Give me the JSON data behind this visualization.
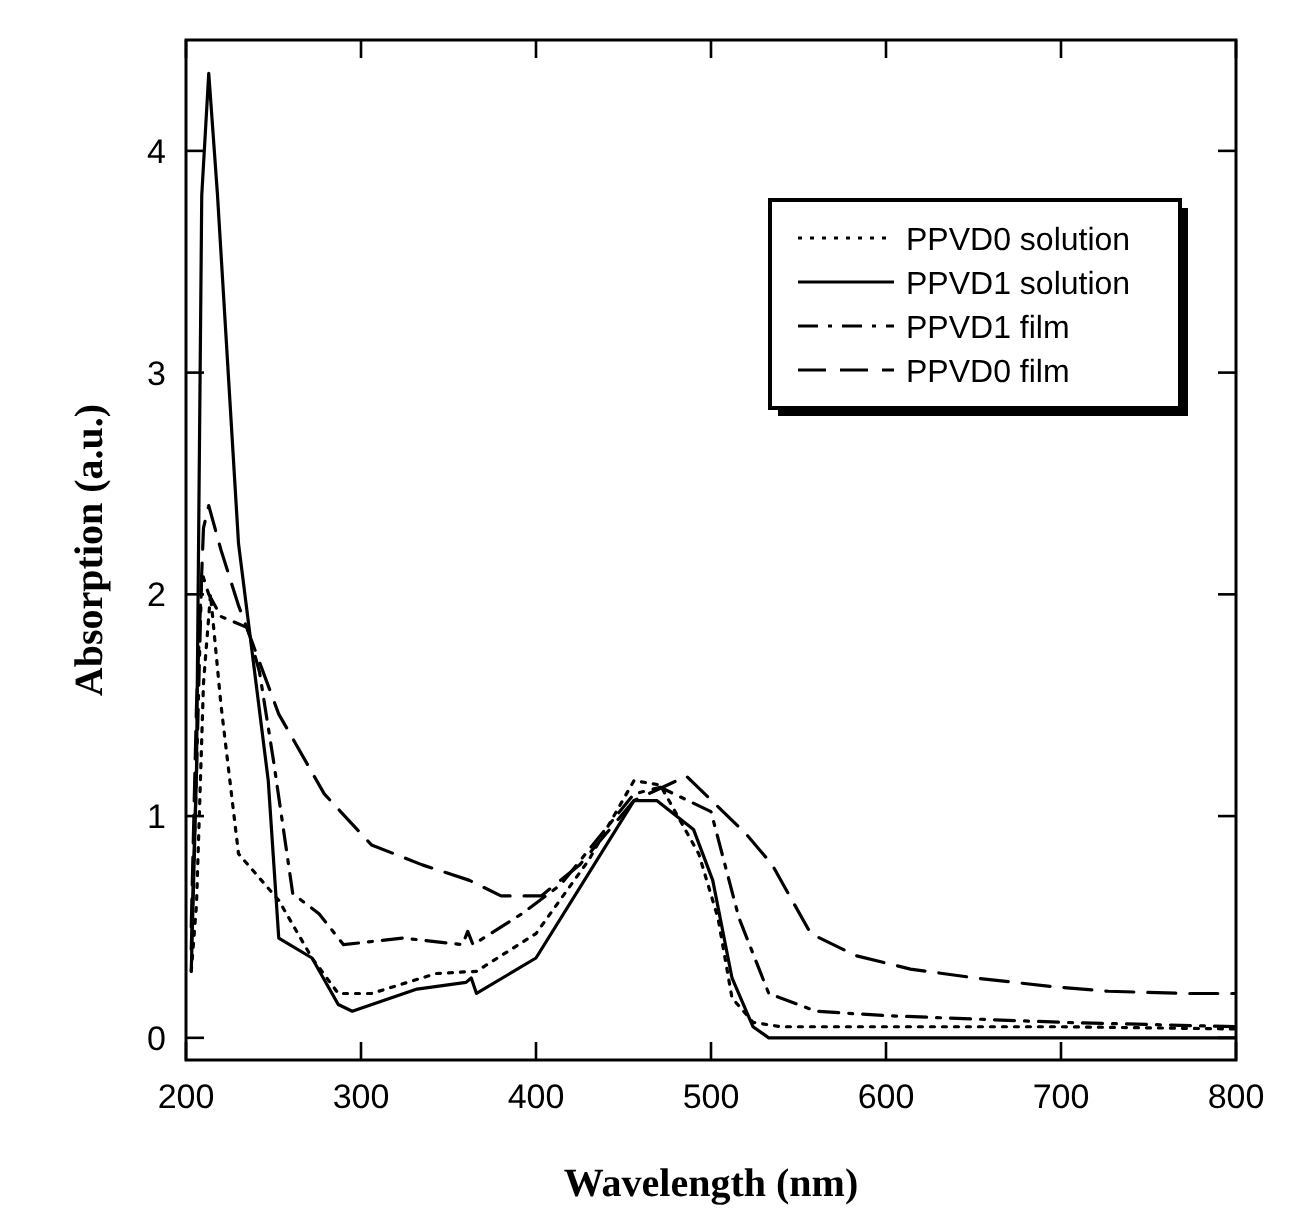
{
  "chart_data": {
    "type": "line",
    "xlabel": "Wavelength (nm)",
    "ylabel": "Absorption (a.u.)",
    "xlim": [
      200,
      800
    ],
    "ylim": [
      -0.1,
      4.5
    ],
    "xticks": [
      200,
      300,
      400,
      500,
      600,
      700,
      800
    ],
    "yticks": [
      0,
      1,
      2,
      3,
      4
    ],
    "legend": "top right",
    "grid": false,
    "series": [
      {
        "name": "PPVD0 solution",
        "color": "#000000",
        "line_style": "dotted",
        "x": [
          203,
          206,
          210,
          214,
          220,
          230,
          253,
          272,
          287,
          306,
          343,
          366,
          400,
          430,
          456,
          471,
          493,
          504,
          512,
          524,
          540,
          600,
          700,
          800
        ],
        "values": [
          0.3,
          0.6,
          1.6,
          2.0,
          1.5,
          0.83,
          0.62,
          0.36,
          0.2,
          0.2,
          0.29,
          0.3,
          0.47,
          0.8,
          1.16,
          1.14,
          0.83,
          0.54,
          0.18,
          0.07,
          0.05,
          0.05,
          0.05,
          0.04
        ]
      },
      {
        "name": "PPVD1 solution",
        "color": "#000000",
        "line_style": "solid",
        "x": [
          203,
          206,
          209,
          213,
          218,
          230,
          247,
          253,
          272,
          287,
          295,
          332,
          360,
          363,
          366,
          400,
          456,
          469,
          490,
          501,
          512,
          524,
          533,
          600,
          700,
          800
        ],
        "values": [
          0.3,
          1.2,
          3.8,
          4.35,
          3.8,
          2.23,
          1.16,
          0.45,
          0.36,
          0.15,
          0.12,
          0.22,
          0.25,
          0.27,
          0.2,
          0.36,
          1.07,
          1.07,
          0.94,
          0.71,
          0.27,
          0.05,
          0.0,
          0.0,
          0.0,
          0.0
        ]
      },
      {
        "name": "PPVD1 film",
        "color": "#000000",
        "line_style": "dashdot",
        "x": [
          203,
          206,
          209,
          213,
          220,
          235,
          242,
          250,
          261,
          276,
          290,
          324,
          358,
          361,
          364,
          392,
          414,
          456,
          471,
          500,
          516,
          533,
          560,
          600,
          700,
          800
        ],
        "values": [
          0.4,
          1.2,
          2.1,
          2.0,
          1.9,
          1.85,
          1.65,
          1.25,
          0.65,
          0.56,
          0.42,
          0.45,
          0.42,
          0.48,
          0.42,
          0.56,
          0.69,
          1.1,
          1.13,
          1.02,
          0.54,
          0.2,
          0.12,
          0.1,
          0.07,
          0.05
        ]
      },
      {
        "name": "PPVD0 film",
        "color": "#000000",
        "line_style": "dashed",
        "x": [
          203,
          206,
          210,
          213,
          220,
          230,
          253,
          279,
          306,
          335,
          362,
          380,
          403,
          425,
          456,
          486,
          520,
          535,
          557,
          583,
          614,
          651,
          696,
          727,
          772,
          800
        ],
        "values": [
          0.5,
          1.5,
          2.3,
          2.4,
          2.2,
          1.95,
          1.46,
          1.1,
          0.87,
          0.78,
          0.71,
          0.64,
          0.64,
          0.78,
          1.07,
          1.18,
          0.92,
          0.78,
          0.47,
          0.37,
          0.31,
          0.27,
          0.23,
          0.21,
          0.2,
          0.2
        ]
      }
    ]
  }
}
